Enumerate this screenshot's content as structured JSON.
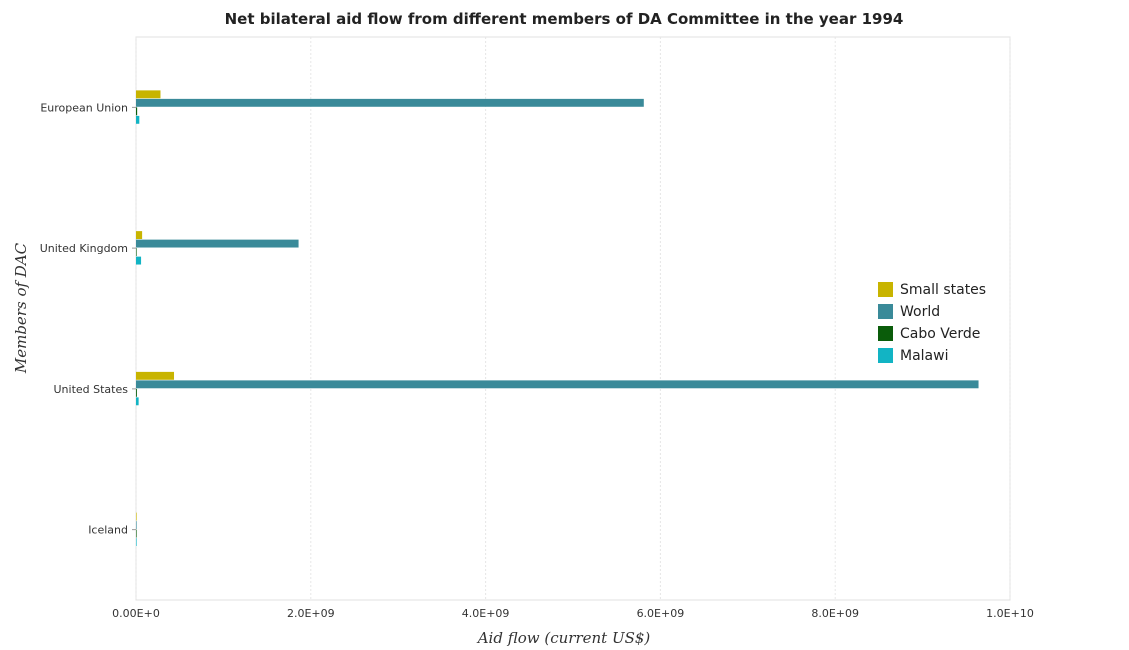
{
  "chart_data": {
    "type": "bar",
    "orientation": "horizontal",
    "title": "Net bilateral aid flow from different members of DA Committee in the year 1994",
    "xlabel": "Aid flow (current US$)",
    "ylabel": "Members of DAC",
    "categories": [
      "European Union",
      "United Kingdom",
      "United States",
      "Iceland"
    ],
    "series": [
      {
        "name": "Small states",
        "color": "#c8b400",
        "values": [
          280000000,
          70000000,
          435000000,
          100000
        ]
      },
      {
        "name": "World",
        "color": "#3a8a99",
        "values": [
          5810000000,
          1860000000,
          9640000000,
          200000
        ]
      },
      {
        "name": "Cabo Verde",
        "color": "#0a5c0a",
        "values": [
          13000000,
          1000000,
          10000000,
          10000
        ]
      },
      {
        "name": "Malawi",
        "color": "#12b4c4",
        "values": [
          38000000,
          58000000,
          30000000,
          30000
        ]
      }
    ],
    "xlim": [
      0,
      10000000000
    ],
    "xticks": [
      {
        "value": 0,
        "label": "0.00E+0"
      },
      {
        "value": 2000000000,
        "label": "2.0E+09"
      },
      {
        "value": 4000000000,
        "label": "4.0E+09"
      },
      {
        "value": 6000000000,
        "label": "6.0E+09"
      },
      {
        "value": 8000000000,
        "label": "8.0E+09"
      },
      {
        "value": 10000000000,
        "label": "1.0E+10"
      }
    ],
    "grid": true,
    "legend_position": "right"
  }
}
